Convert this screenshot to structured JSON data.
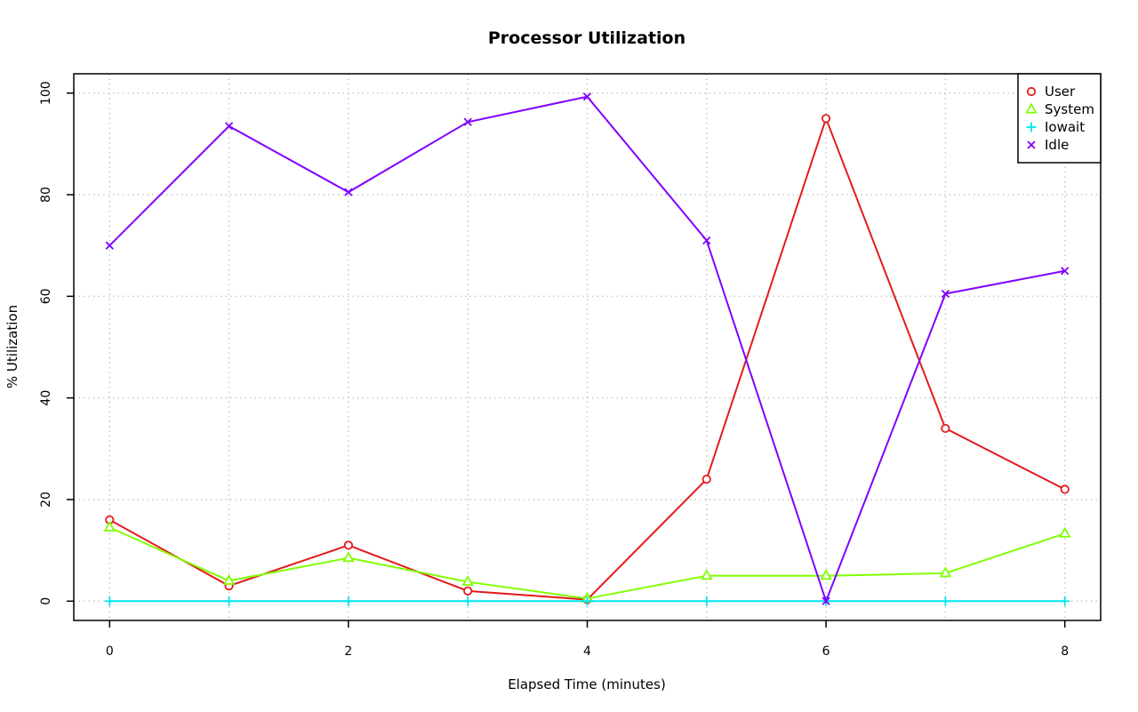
{
  "chart_data": {
    "type": "line",
    "title": "Processor Utilization",
    "xlabel": "Elapsed Time (minutes)",
    "ylabel": "% Utilization",
    "xlim": [
      -0.3,
      8.3
    ],
    "ylim": [
      -3.8,
      103.8
    ],
    "xticks": [
      0,
      2,
      4,
      6,
      8
    ],
    "yticks": [
      0,
      20,
      40,
      60,
      80,
      100
    ],
    "grid": true,
    "legend_position": "top-right",
    "x": [
      0,
      1,
      2,
      3,
      4,
      5,
      6,
      7,
      8
    ],
    "series": [
      {
        "name": "User",
        "color": "#e41a1c",
        "marker": "circle",
        "values": [
          16,
          3,
          11,
          2,
          0.3,
          24,
          95,
          34,
          22
        ]
      },
      {
        "name": "System",
        "color": "#80ff00",
        "marker": "triangle",
        "values": [
          14.5,
          4,
          8.5,
          3.8,
          0.5,
          5,
          5,
          5.5,
          13.3
        ]
      },
      {
        "name": "Iowait",
        "color": "#00e5ee",
        "marker": "plus",
        "values": [
          0,
          0,
          0,
          0,
          0,
          0,
          0,
          0,
          0
        ]
      },
      {
        "name": "Idle",
        "color": "#8000ff",
        "marker": "cross",
        "values": [
          70,
          93.5,
          80.5,
          94.3,
          99.3,
          71,
          0,
          60.5,
          65
        ]
      }
    ]
  }
}
